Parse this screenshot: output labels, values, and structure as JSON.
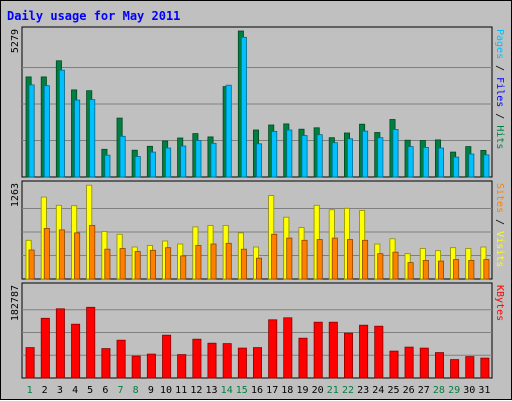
{
  "chart_data": {
    "type": "bar",
    "title": "Daily usage for May 2011",
    "colors": {
      "hits": "#008040",
      "files": "#00c0ff",
      "pages": "#00c0ff",
      "visits": "#ffff00",
      "sites": "#ff8000",
      "kbytes": "#ff0000",
      "weekend_label": "#008040",
      "weekday_label": "#000000"
    },
    "days": [
      "1",
      "2",
      "3",
      "4",
      "5",
      "6",
      "7",
      "8",
      "9",
      "10",
      "11",
      "12",
      "13",
      "14",
      "15",
      "16",
      "17",
      "18",
      "19",
      "20",
      "21",
      "22",
      "23",
      "24",
      "25",
      "26",
      "27",
      "28",
      "29",
      "30",
      "31"
    ],
    "weekend_days": [
      "1",
      "7",
      "8",
      "14",
      "15",
      "21",
      "22",
      "28",
      "29"
    ],
    "panels": [
      {
        "id": "hits-files",
        "ymax_label": "5279",
        "ymax": 5279,
        "legend": [
          {
            "text": "Pages",
            "color": "#00c0ff"
          },
          {
            "text": " / ",
            "color": "#000000"
          },
          {
            "text": "Files",
            "color": "#0000ff"
          },
          {
            "text": " / ",
            "color": "#000000"
          },
          {
            "text": "Hits",
            "color": "#008040"
          }
        ],
        "series": [
          {
            "name": "Hits",
            "color": "#008040",
            "values": [
              3620,
              3620,
              4200,
              3150,
              3120,
              1000,
              2130,
              970,
              1110,
              1300,
              1410,
              1570,
              1450,
              3270,
              5280,
              1700,
              1880,
              1920,
              1730,
              1780,
              1420,
              1590,
              1910,
              1610,
              2080,
              1330,
              1320,
              1340,
              900,
              1100,
              960
            ]
          },
          {
            "name": "Files",
            "color": "#00c0ff",
            "values": [
              3330,
              3300,
              3860,
              2780,
              2800,
              790,
              1470,
              740,
              900,
              1050,
              1120,
              1320,
              1220,
              3320,
              5050,
              1200,
              1650,
              1700,
              1500,
              1530,
              1240,
              1380,
              1660,
              1420,
              1720,
              1100,
              1070,
              1050,
              720,
              830,
              800
            ]
          }
        ]
      },
      {
        "id": "visits-sites",
        "ymax_label": "1263",
        "ymax": 1263,
        "legend": [
          {
            "text": "Sites",
            "color": "#ff8000"
          },
          {
            "text": " / ",
            "color": "#000000"
          },
          {
            "text": "Visits",
            "color": "#ffff00"
          }
        ],
        "series": [
          {
            "name": "Visits",
            "color": "#ffff00",
            "values": [
              520,
              1100,
              990,
              985,
              1260,
              640,
              600,
              430,
              450,
              510,
              470,
              700,
              720,
              720,
              620,
              430,
              1120,
              830,
              690,
              990,
              930,
              950,
              920,
              470,
              540,
              340,
              410,
              380,
              420,
              410,
              430
            ]
          },
          {
            "name": "Sites",
            "color": "#ff8000",
            "values": [
              390,
              680,
              660,
              620,
              720,
              400,
              410,
              370,
              385,
              420,
              310,
              450,
              470,
              480,
              400,
              280,
              600,
              550,
              520,
              530,
              550,
              530,
              520,
              340,
              360,
              220,
              250,
              240,
              260,
              250,
              260
            ]
          }
        ]
      },
      {
        "id": "kbytes",
        "ymax_label": "182787",
        "ymax": 182787,
        "legend": [
          {
            "text": "KBytes",
            "color": "#ff0000"
          }
        ],
        "series": [
          {
            "name": "KBytes",
            "color": "#ff0000",
            "values": [
              61000,
              120000,
              139000,
              108000,
              142000,
              59000,
              76000,
              44000,
              48000,
              86000,
              47000,
              78000,
              70000,
              69000,
              60000,
              61000,
              117000,
              121000,
              80000,
              112000,
              112000,
              90000,
              106000,
              104000,
              54000,
              62000,
              60000,
              51000,
              37000,
              43000,
              40000
            ]
          }
        ]
      }
    ]
  }
}
